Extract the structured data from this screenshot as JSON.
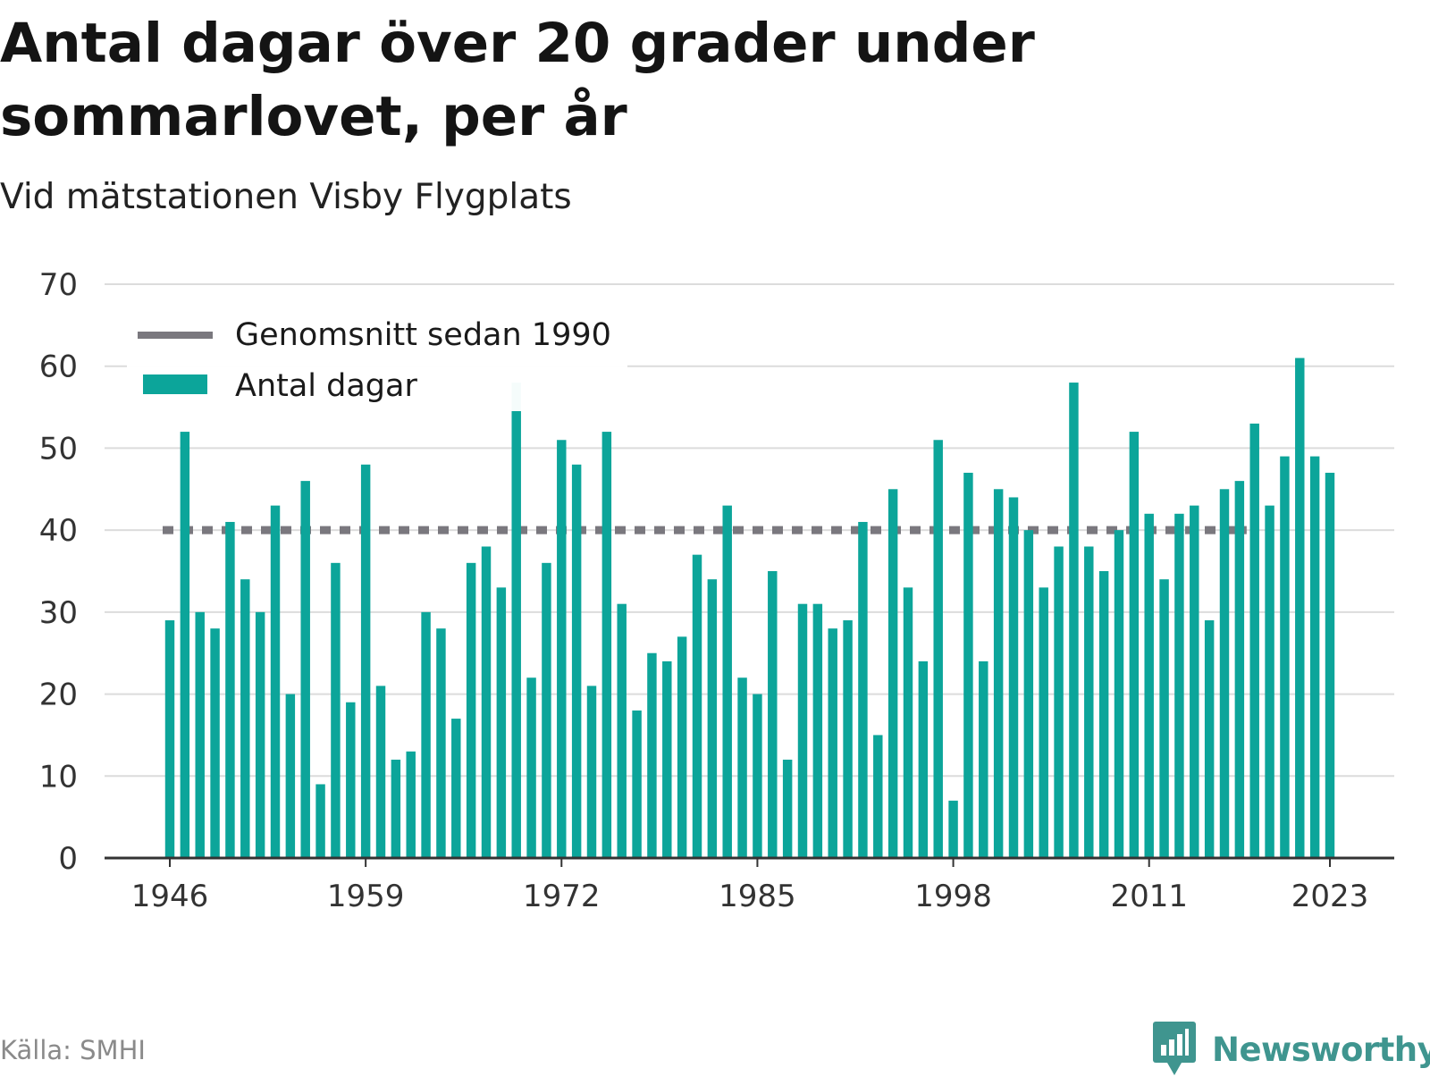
{
  "title": "Antal dagar över 20 grader under sommarlovet, per år",
  "subtitle": "Vid mätstationen Visby Flygplats",
  "source": "Källa: SMHI",
  "brand": {
    "name": "Newsworthy",
    "logo_icon": "newsworthy-logo-icon"
  },
  "colors": {
    "bar": "#0ca59a",
    "average": "#7a787e",
    "grid": "#dcdcdc",
    "axis": "#333333"
  },
  "chart_data": {
    "type": "bar",
    "x": [
      1946,
      1947,
      1948,
      1949,
      1950,
      1951,
      1952,
      1953,
      1954,
      1955,
      1956,
      1957,
      1958,
      1959,
      1960,
      1961,
      1962,
      1963,
      1964,
      1965,
      1966,
      1967,
      1968,
      1969,
      1970,
      1971,
      1972,
      1973,
      1974,
      1975,
      1976,
      1977,
      1978,
      1979,
      1980,
      1981,
      1982,
      1983,
      1984,
      1985,
      1986,
      1987,
      1988,
      1989,
      1990,
      1991,
      1992,
      1993,
      1994,
      1995,
      1996,
      1997,
      1998,
      1999,
      2000,
      2001,
      2002,
      2003,
      2004,
      2005,
      2006,
      2007,
      2008,
      2009,
      2010,
      2011,
      2012,
      2013,
      2014,
      2015,
      2016,
      2017,
      2018,
      2019,
      2020,
      2021,
      2022,
      2023
    ],
    "series": [
      {
        "name": "Antal dagar",
        "values": [
          29,
          52,
          30,
          28,
          41,
          34,
          30,
          43,
          20,
          46,
          9,
          36,
          19,
          48,
          21,
          12,
          13,
          30,
          28,
          17,
          36,
          38,
          33,
          58,
          22,
          36,
          51,
          48,
          21,
          52,
          31,
          18,
          25,
          24,
          27,
          37,
          34,
          43,
          22,
          20,
          35,
          12,
          31,
          31,
          28,
          29,
          41,
          15,
          45,
          33,
          24,
          51,
          7,
          47,
          24,
          45,
          44,
          40,
          33,
          38,
          58,
          38,
          35,
          40,
          52,
          42,
          34,
          42,
          43,
          29,
          45,
          46,
          53,
          43,
          49,
          61,
          49,
          47
        ]
      }
    ],
    "reference_line": {
      "name": "Genomsnitt sedan 1990",
      "value": 40,
      "style": "dashed"
    },
    "legend": {
      "placement": "top-left",
      "entries": [
        "Genomsnitt sedan 1990",
        "Antal dagar"
      ]
    },
    "ylim": [
      0,
      70
    ],
    "yticks": [
      0,
      10,
      20,
      30,
      40,
      50,
      60,
      70
    ],
    "xticks": [
      1946,
      1959,
      1972,
      1985,
      1998,
      2011,
      2023
    ],
    "grid": true,
    "xlabel": "",
    "ylabel": ""
  }
}
